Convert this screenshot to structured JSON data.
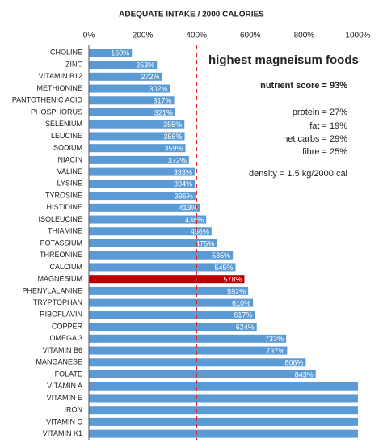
{
  "chart_data": {
    "type": "hbar",
    "title": "ADEQUATE INTAKE / 2000 CALORIES",
    "categories": [
      "CHOLINE",
      "ZINC",
      "VITAMIN B12",
      "METHIONINE",
      "PANTOTHENIC ACID",
      "PHOSPHORUS",
      "SELENIUM",
      "LEUCINE",
      "SODIUM",
      "NIACIN",
      "VALINE",
      "LYSINE",
      "TYROSINE",
      "HISTIDINE",
      "ISOLEUCINE",
      "THIAMINE",
      "POTASSIUM",
      "THREONINE",
      "CALCIUM",
      "MAGNESIUM",
      "PHENYLALANINE",
      "TRYPTOPHAN",
      "RIBOFLAVIN",
      "COPPER",
      "OMEGA 3",
      "VITAMIN B6",
      "MANGANESE",
      "FOLATE",
      "VITAMIN A",
      "VITAMIN E",
      "IRON",
      "VITAMIN C",
      "VITAMIN K1"
    ],
    "values": [
      160,
      253,
      272,
      302,
      317,
      321,
      355,
      356,
      359,
      372,
      393,
      394,
      396,
      413,
      436,
      456,
      475,
      535,
      545,
      578,
      592,
      610,
      617,
      624,
      733,
      737,
      806,
      843,
      1000,
      1000,
      1000,
      1000,
      1000
    ],
    "value_labels": [
      "160%",
      "253%",
      "272%",
      "302%",
      "317%",
      "321%",
      "355%",
      "356%",
      "359%",
      "372%",
      "393%",
      "394%",
      "396%",
      "413%",
      "436%",
      "456%",
      "475%",
      "535%",
      "545%",
      "578%",
      "592%",
      "610%",
      "617%",
      "624%",
      "733%",
      "737%",
      "806%",
      "843%",
      null,
      null,
      null,
      null,
      null
    ],
    "colors": [
      "#5b9bd5",
      "#5b9bd5",
      "#5b9bd5",
      "#5b9bd5",
      "#5b9bd5",
      "#5b9bd5",
      "#5b9bd5",
      "#5b9bd5",
      "#5b9bd5",
      "#5b9bd5",
      "#5b9bd5",
      "#5b9bd5",
      "#5b9bd5",
      "#5b9bd5",
      "#5b9bd5",
      "#5b9bd5",
      "#5b9bd5",
      "#5b9bd5",
      "#5b9bd5",
      "#c00000",
      "#5b9bd5",
      "#5b9bd5",
      "#5b9bd5",
      "#5b9bd5",
      "#5b9bd5",
      "#5b9bd5",
      "#5b9bd5",
      "#5b9bd5",
      "#5b9bd5",
      "#5b9bd5",
      "#5b9bd5",
      "#5b9bd5",
      "#5b9bd5"
    ],
    "xlim": [
      0,
      1000
    ],
    "xticks": [
      {
        "value": 0,
        "label": "0%"
      },
      {
        "value": 200,
        "label": "200%"
      },
      {
        "value": 400,
        "label": "400%"
      },
      {
        "value": 600,
        "label": "600%"
      },
      {
        "value": 800,
        "label": "800%"
      },
      {
        "value": 1000,
        "label": "1000%"
      }
    ],
    "reference_line": 400,
    "reference_color": "#e02020",
    "annotations": [
      "highest magneisum foods",
      "nutrient score = 93%",
      "protein = 27%",
      "fat = 19%",
      "net carbs = 29%",
      "fibre = 25%",
      "density = 1.5 kg/2000 cal"
    ]
  }
}
